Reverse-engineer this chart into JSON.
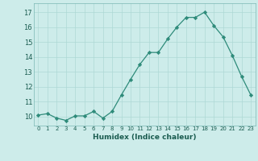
{
  "x": [
    0,
    1,
    2,
    3,
    4,
    5,
    6,
    7,
    8,
    9,
    10,
    11,
    12,
    13,
    14,
    15,
    16,
    17,
    18,
    19,
    20,
    21,
    22,
    23
  ],
  "y": [
    10.1,
    10.2,
    9.9,
    9.75,
    10.05,
    10.05,
    10.35,
    9.9,
    10.35,
    11.45,
    12.5,
    13.5,
    14.3,
    14.3,
    15.2,
    16.0,
    16.65,
    16.65,
    17.0,
    16.1,
    15.35,
    14.1,
    12.7,
    11.45
  ],
  "line_color": "#2e8b7a",
  "marker_color": "#2e8b7a",
  "bg_color": "#cdecea",
  "grid_color": "#aed8d5",
  "xlabel": "Humidex (Indice chaleur)",
  "ylabel_ticks": [
    10,
    11,
    12,
    13,
    14,
    15,
    16,
    17
  ],
  "xlim": [
    -0.5,
    23.5
  ],
  "ylim": [
    9.4,
    17.6
  ],
  "xtick_labels": [
    "0",
    "1",
    "2",
    "3",
    "4",
    "5",
    "6",
    "7",
    "8",
    "9",
    "10",
    "11",
    "12",
    "13",
    "14",
    "15",
    "16",
    "17",
    "18",
    "19",
    "20",
    "21",
    "22",
    "23"
  ]
}
